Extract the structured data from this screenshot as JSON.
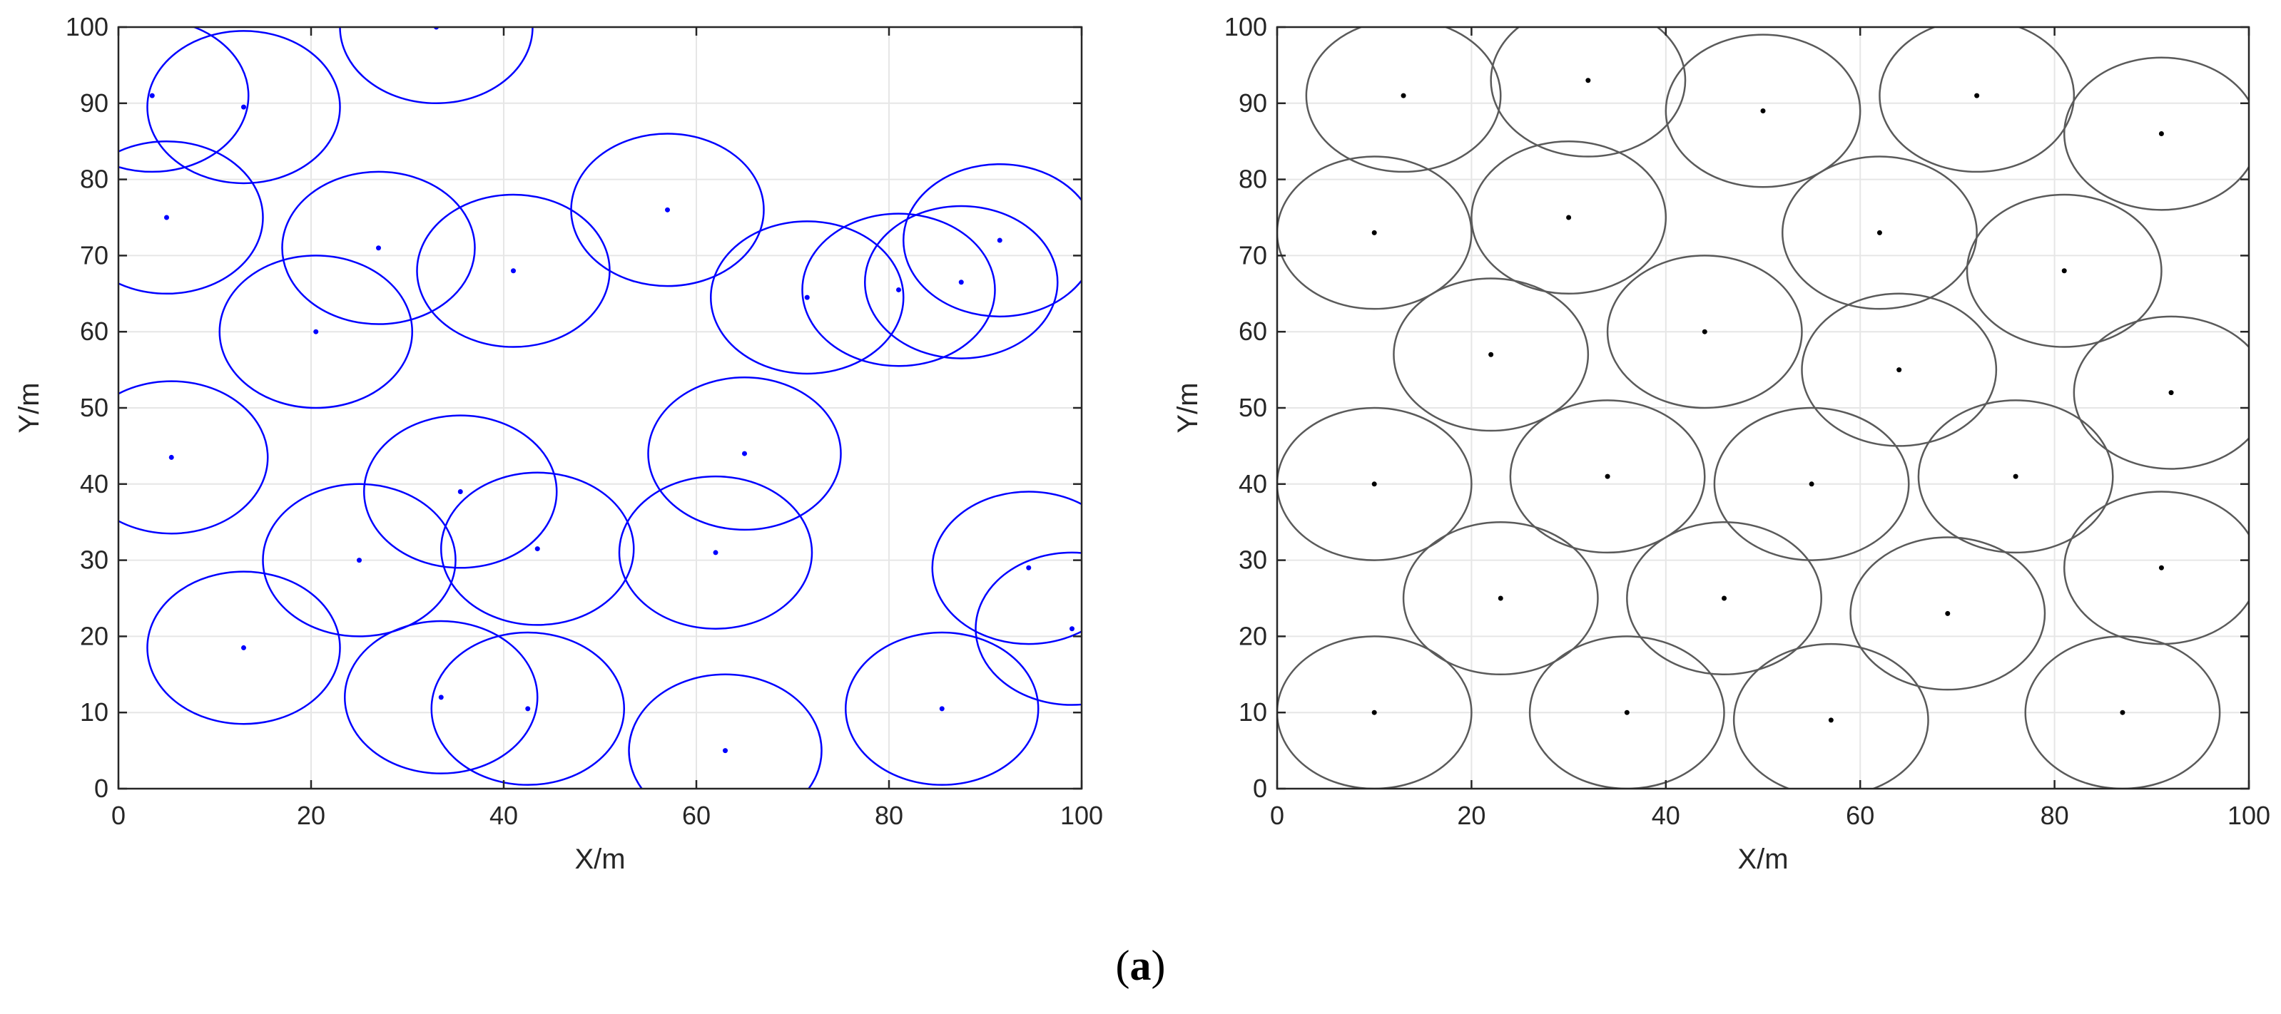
{
  "caption": {
    "open": "(",
    "letter": "a",
    "close": ")"
  },
  "chart_data": [
    {
      "type": "scatter",
      "title": "",
      "xlabel": "X/m",
      "ylabel": "Y/m",
      "xlim": [
        0,
        100
      ],
      "ylim": [
        0,
        100
      ],
      "xticks": [
        0,
        20,
        40,
        60,
        80,
        100
      ],
      "yticks": [
        0,
        10,
        20,
        30,
        40,
        50,
        60,
        70,
        80,
        90,
        100
      ],
      "grid": true,
      "legend": "none",
      "marker_color": "#0000ff",
      "circle_color": "#0000ff",
      "sensing_radius": 10,
      "points": [
        {
          "x": 33,
          "y": 100
        },
        {
          "x": 3.5,
          "y": 91
        },
        {
          "x": 13,
          "y": 89.5
        },
        {
          "x": 5,
          "y": 75
        },
        {
          "x": 27,
          "y": 71
        },
        {
          "x": 41,
          "y": 68
        },
        {
          "x": 57,
          "y": 76
        },
        {
          "x": 71.5,
          "y": 64.5
        },
        {
          "x": 81,
          "y": 65.5
        },
        {
          "x": 87.5,
          "y": 66.5
        },
        {
          "x": 91.5,
          "y": 72
        },
        {
          "x": 20.5,
          "y": 60
        },
        {
          "x": 5.5,
          "y": 43.5
        },
        {
          "x": 35.5,
          "y": 39
        },
        {
          "x": 65,
          "y": 44
        },
        {
          "x": 25,
          "y": 30
        },
        {
          "x": 43.5,
          "y": 31.5
        },
        {
          "x": 62,
          "y": 31
        },
        {
          "x": 94.5,
          "y": 29
        },
        {
          "x": 13,
          "y": 18.5
        },
        {
          "x": 33.5,
          "y": 12
        },
        {
          "x": 42.5,
          "y": 10.5
        },
        {
          "x": 63,
          "y": 5
        },
        {
          "x": 85.5,
          "y": 10.5
        },
        {
          "x": 99,
          "y": 21
        }
      ]
    },
    {
      "type": "scatter",
      "title": "",
      "xlabel": "X/m",
      "ylabel": "Y/m",
      "xlim": [
        0,
        100
      ],
      "ylim": [
        0,
        100
      ],
      "xticks": [
        0,
        20,
        40,
        60,
        80,
        100
      ],
      "yticks": [
        0,
        10,
        20,
        30,
        40,
        50,
        60,
        70,
        80,
        90,
        100
      ],
      "grid": true,
      "legend": "none",
      "marker_color": "#000000",
      "circle_color": "#5a5a5a",
      "sensing_radius": 10,
      "points": [
        {
          "x": 13,
          "y": 91
        },
        {
          "x": 32,
          "y": 93
        },
        {
          "x": 50,
          "y": 89
        },
        {
          "x": 72,
          "y": 91
        },
        {
          "x": 91,
          "y": 86
        },
        {
          "x": 10,
          "y": 73
        },
        {
          "x": 30,
          "y": 75
        },
        {
          "x": 62,
          "y": 73
        },
        {
          "x": 81,
          "y": 68
        },
        {
          "x": 22,
          "y": 57
        },
        {
          "x": 44,
          "y": 60
        },
        {
          "x": 64,
          "y": 55
        },
        {
          "x": 92,
          "y": 52
        },
        {
          "x": 10,
          "y": 40
        },
        {
          "x": 34,
          "y": 41
        },
        {
          "x": 55,
          "y": 40
        },
        {
          "x": 76,
          "y": 41
        },
        {
          "x": 91,
          "y": 29
        },
        {
          "x": 23,
          "y": 25
        },
        {
          "x": 46,
          "y": 25
        },
        {
          "x": 69,
          "y": 23
        },
        {
          "x": 10,
          "y": 10
        },
        {
          "x": 36,
          "y": 10
        },
        {
          "x": 57,
          "y": 9
        },
        {
          "x": 87,
          "y": 10
        }
      ]
    }
  ]
}
